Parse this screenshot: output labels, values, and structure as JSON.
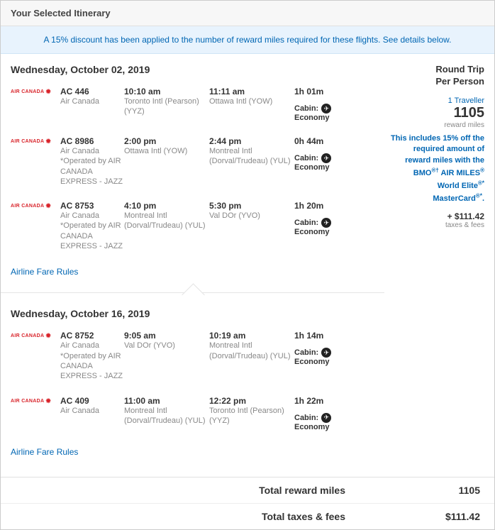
{
  "header": {
    "title": "Your Selected Itinerary"
  },
  "banner": {
    "text": "A 15% discount has been applied to the number of reward miles required for these flights. See details below."
  },
  "trips": [
    {
      "date": "Wednesday, October 02, 2019",
      "segments": [
        {
          "logo": "AIR CANADA",
          "flight": "AC 446",
          "airline": "Air Canada",
          "operated": "",
          "dep_time": "10:10 am",
          "dep_loc": "Toronto Intl (Pearson) (YYZ)",
          "arr_time": "11:11 am",
          "arr_loc": "Ottawa Intl (YOW)",
          "duration": "1h 01m",
          "cabin_label": "Cabin:",
          "cabin": "Economy"
        },
        {
          "logo": "AIR CANADA",
          "flight": "AC 8986",
          "airline": "Air Canada",
          "operated": "*Operated by AIR CANADA EXPRESS - JAZZ",
          "dep_time": "2:00 pm",
          "dep_loc": "Ottawa Intl (YOW)",
          "arr_time": "2:44 pm",
          "arr_loc": "Montreal Intl (Dorval/Trudeau) (YUL)",
          "duration": "0h 44m",
          "cabin_label": "Cabin:",
          "cabin": "Economy"
        },
        {
          "logo": "AIR CANADA",
          "flight": "AC 8753",
          "airline": "Air Canada",
          "operated": "*Operated by AIR CANADA EXPRESS - JAZZ",
          "dep_time": "4:10 pm",
          "dep_loc": "Montreal Intl (Dorval/Trudeau) (YUL)",
          "arr_time": "5:30 pm",
          "arr_loc": "Val DOr (YVO)",
          "duration": "1h 20m",
          "cabin_label": "Cabin:",
          "cabin": "Economy"
        }
      ],
      "rules": "Airline Fare Rules"
    },
    {
      "date": "Wednesday, October 16, 2019",
      "segments": [
        {
          "logo": "AIR CANADA",
          "flight": "AC 8752",
          "airline": "Air Canada",
          "operated": "*Operated by AIR CANADA EXPRESS - JAZZ",
          "dep_time": "9:05 am",
          "dep_loc": "Val DOr (YVO)",
          "arr_time": "10:19 am",
          "arr_loc": "Montreal Intl (Dorval/Trudeau) (YUL)",
          "duration": "1h 14m",
          "cabin_label": "Cabin:",
          "cabin": "Economy"
        },
        {
          "logo": "AIR CANADA",
          "flight": "AC 409",
          "airline": "Air Canada",
          "operated": "",
          "dep_time": "11:00 am",
          "dep_loc": "Montreal Intl (Dorval/Trudeau) (YUL)",
          "arr_time": "12:22 pm",
          "arr_loc": "Toronto Intl (Pearson) (YYZ)",
          "duration": "1h 22m",
          "cabin_label": "Cabin:",
          "cabin": "Economy"
        }
      ],
      "rules": "Airline Fare Rules"
    }
  ],
  "summary": {
    "trip_type_1": "Round Trip",
    "trip_type_2": "Per Person",
    "travellers": "1 Traveller",
    "miles": "1105",
    "miles_label": "reward miles",
    "discount_prefix": "This includes 15% off the required amount of reward miles with the ",
    "discount_card1": "BMO",
    "discount_card2": " AIR MILES",
    "discount_card3": " World Elite",
    "discount_card4": " MasterCard",
    "discount_suffix": ".",
    "plus_fees": "+ $111.42",
    "fees_label": "taxes & fees"
  },
  "totals": {
    "miles_label": "Total reward miles",
    "miles_value": "1105",
    "fees_label": "Total taxes & fees",
    "fees_value": "$111.42"
  }
}
